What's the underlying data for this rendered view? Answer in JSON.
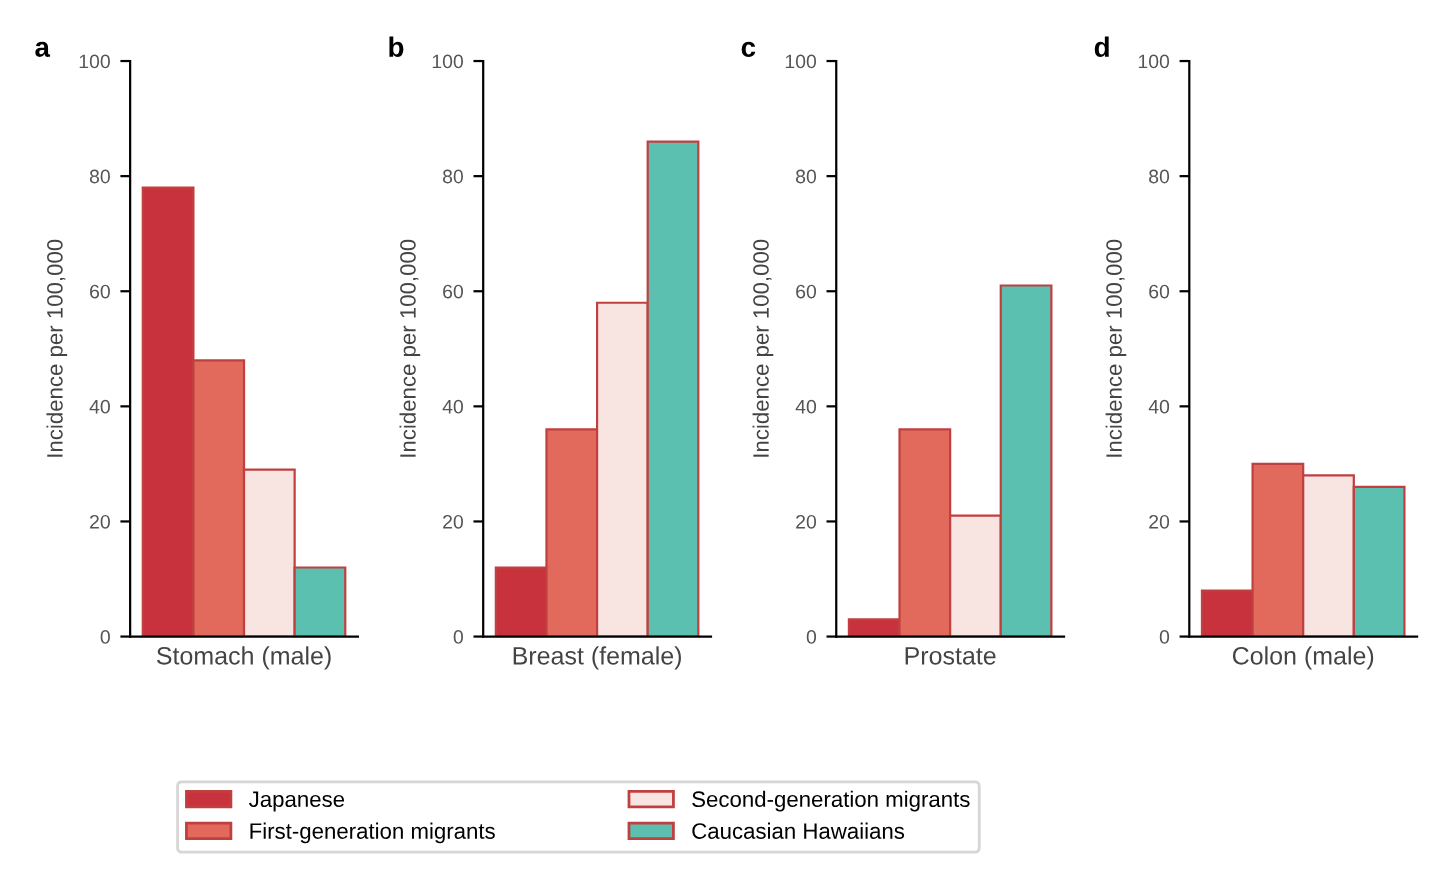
{
  "chart_data": [
    {
      "type": "bar",
      "annotations": [
        "a"
      ],
      "ylabel": "Incidence per 100,000",
      "categories": [
        "Stomach (male)"
      ],
      "ylim": [
        0,
        100
      ],
      "yticks": [
        0,
        20,
        40,
        60,
        80,
        100
      ],
      "legend": "bottom",
      "grid": false,
      "series": [
        {
          "name": "Japanese",
          "color": "#c8323c",
          "values": [
            78
          ]
        },
        {
          "name": "First-generation migrants",
          "color": "#e26a5c",
          "values": [
            48
          ]
        },
        {
          "name": "Second-generation migrants",
          "color": "#f8e4e0",
          "values": [
            29
          ]
        },
        {
          "name": "Caucasian Hawaiians",
          "color": "#5cc0b0",
          "values": [
            12
          ]
        }
      ]
    },
    {
      "type": "bar",
      "annotations": [
        "b"
      ],
      "ylabel": "Incidence per 100,000",
      "categories": [
        "Breast (female)"
      ],
      "ylim": [
        0,
        100
      ],
      "yticks": [
        0,
        20,
        40,
        60,
        80,
        100
      ],
      "grid": false,
      "series": [
        {
          "color": "#c8323c",
          "values": [
            12
          ]
        },
        {
          "color": "#e26a5c",
          "values": [
            36
          ]
        },
        {
          "color": "#f8e4e0",
          "values": [
            58
          ]
        },
        {
          "color": "#5cc0b0",
          "values": [
            86
          ]
        }
      ]
    },
    {
      "type": "bar",
      "annotations": [
        "c"
      ],
      "ylabel": "Incidence per 100,000",
      "categories": [
        "Prostate"
      ],
      "ylim": [
        0,
        100
      ],
      "yticks": [
        0,
        20,
        40,
        60,
        80,
        100
      ],
      "grid": false,
      "series": [
        {
          "color": "#c8323c",
          "values": [
            3
          ]
        },
        {
          "color": "#e26a5c",
          "values": [
            36
          ]
        },
        {
          "color": "#f8e4e0",
          "values": [
            21
          ]
        },
        {
          "color": "#5cc0b0",
          "values": [
            61
          ]
        }
      ]
    },
    {
      "type": "bar",
      "annotations": [
        "d"
      ],
      "ylabel": "Incidence per 100,000",
      "categories": [
        "Colon (male)"
      ],
      "ylim": [
        0,
        100
      ],
      "yticks": [
        0,
        20,
        40,
        60,
        80,
        100
      ],
      "grid": false,
      "series": [
        {
          "color": "#c8323c",
          "values": [
            8
          ]
        },
        {
          "color": "#e26a5c",
          "values": [
            30
          ]
        },
        {
          "color": "#f8e4e0",
          "values": [
            28
          ]
        },
        {
          "color": "#5cc0b0",
          "values": [
            26
          ]
        }
      ]
    }
  ]
}
